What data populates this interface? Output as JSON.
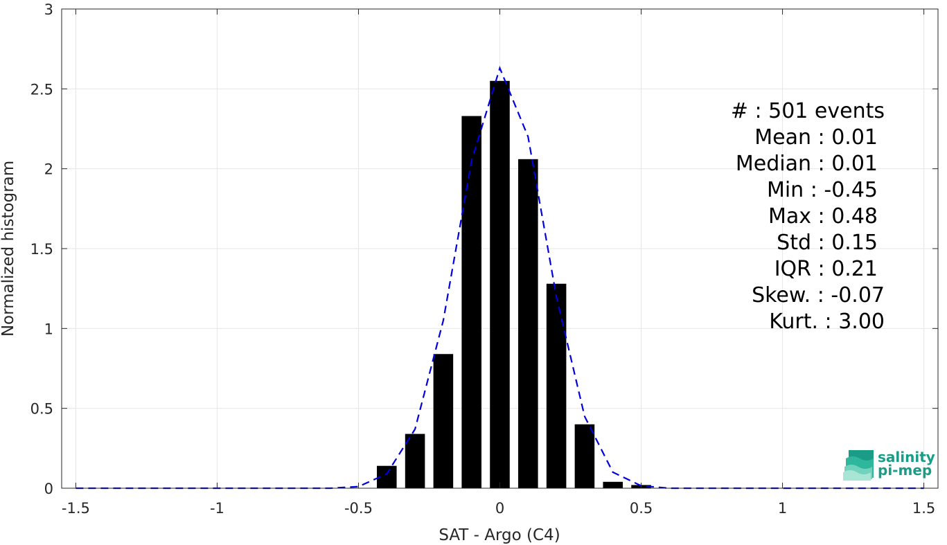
{
  "chart_data": {
    "type": "bar",
    "xlabel": "SAT - Argo (C4)",
    "ylabel": "Normalized histogram",
    "xlim": [
      -1.55,
      1.55
    ],
    "ylim": [
      0,
      3
    ],
    "xticks": [
      -1.5,
      -1,
      -0.5,
      0,
      0.5,
      1,
      1.5
    ],
    "xtick_labels": [
      "-1.5",
      "-1",
      "-0.5",
      "0",
      "0.5",
      "1",
      "1.5"
    ],
    "yticks": [
      0,
      0.5,
      1,
      1.5,
      2,
      2.5,
      3
    ],
    "ytick_labels": [
      "0",
      "0.5",
      "1",
      "1.5",
      "2",
      "2.5",
      "3"
    ],
    "grid": true,
    "bar_width": 0.07,
    "bars": {
      "x": [
        -0.4,
        -0.3,
        -0.2,
        -0.1,
        0,
        0.1,
        0.2,
        0.3,
        0.4,
        0.5
      ],
      "values": [
        0.14,
        0.34,
        0.84,
        2.33,
        2.55,
        2.06,
        1.28,
        0.4,
        0.04,
        0.02
      ],
      "color": "#000000"
    },
    "fit_curve": {
      "style": "dashed",
      "color": "#0000dd",
      "x": [
        -1.5,
        -1.4,
        -1.3,
        -1.2,
        -1.1,
        -1.0,
        -0.9,
        -0.8,
        -0.7,
        -0.6,
        -0.5,
        -0.4,
        -0.3,
        -0.2,
        -0.1,
        0,
        0.1,
        0.2,
        0.3,
        0.4,
        0.5,
        0.6,
        0.7,
        0.8,
        0.9,
        1.0,
        1.1,
        1.2,
        1.3,
        1.4,
        1.5
      ],
      "y": [
        0,
        0,
        0,
        0,
        0,
        0,
        0,
        0,
        0,
        0,
        0.01,
        0.09,
        0.37,
        1.05,
        2.05,
        2.63,
        2.2,
        1.2,
        0.45,
        0.1,
        0.015,
        0,
        0,
        0,
        0,
        0,
        0,
        0,
        0,
        0,
        0
      ]
    },
    "annotation_lines": [
      "#  : 501 events",
      "Mean : 0.01",
      "Median : 0.01",
      "Min : -0.45",
      "Max : 0.48",
      "Std : 0.15",
      "IQR : 0.21",
      "Skew. : -0.07",
      "Kurt. : 3.00"
    ]
  },
  "logo": {
    "line1": "salinity",
    "line2": "pi-mep",
    "colors": [
      "#1b9c87",
      "#2fb79d",
      "#72d3bd",
      "#a8e5d5"
    ]
  }
}
